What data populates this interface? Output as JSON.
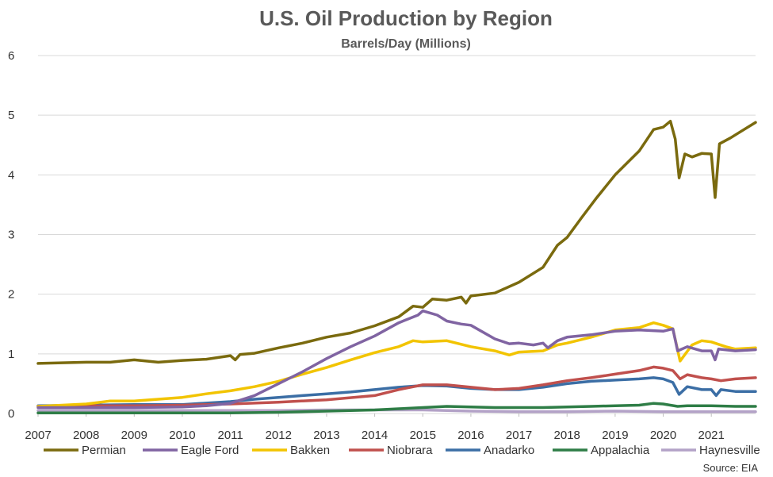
{
  "chart_data": {
    "type": "line",
    "title": "U.S. Oil Production by Region",
    "subtitle": "Barrels/Day (Millions)",
    "source": "Source: EIA",
    "xlabel": "",
    "ylabel": "",
    "xlim": [
      2007,
      2021.92
    ],
    "ylim": [
      0,
      6
    ],
    "x_ticks": [
      "2007",
      "2008",
      "2009",
      "2010",
      "2011",
      "2012",
      "2013",
      "2014",
      "2015",
      "2016",
      "2017",
      "2018",
      "2019",
      "2020",
      "2021"
    ],
    "y_ticks": [
      "0",
      "1",
      "2",
      "3",
      "4",
      "5",
      "6"
    ],
    "grid": true,
    "legend_position": "bottom",
    "series": [
      {
        "name": "Permian",
        "color": "#7A6A0E",
        "points": [
          [
            2007.0,
            0.84
          ],
          [
            2007.5,
            0.85
          ],
          [
            2008.0,
            0.86
          ],
          [
            2008.5,
            0.86
          ],
          [
            2009.0,
            0.9
          ],
          [
            2009.5,
            0.86
          ],
          [
            2010.0,
            0.89
          ],
          [
            2010.5,
            0.91
          ],
          [
            2011.0,
            0.97
          ],
          [
            2011.1,
            0.9
          ],
          [
            2011.2,
            0.99
          ],
          [
            2011.5,
            1.01
          ],
          [
            2012.0,
            1.1
          ],
          [
            2012.5,
            1.18
          ],
          [
            2013.0,
            1.28
          ],
          [
            2013.5,
            1.35
          ],
          [
            2014.0,
            1.47
          ],
          [
            2014.5,
            1.62
          ],
          [
            2014.8,
            1.8
          ],
          [
            2015.0,
            1.78
          ],
          [
            2015.2,
            1.92
          ],
          [
            2015.5,
            1.9
          ],
          [
            2015.8,
            1.95
          ],
          [
            2015.9,
            1.85
          ],
          [
            2016.0,
            1.97
          ],
          [
            2016.5,
            2.02
          ],
          [
            2017.0,
            2.2
          ],
          [
            2017.5,
            2.45
          ],
          [
            2017.8,
            2.82
          ],
          [
            2018.0,
            2.95
          ],
          [
            2018.3,
            3.28
          ],
          [
            2018.6,
            3.6
          ],
          [
            2019.0,
            4.0
          ],
          [
            2019.5,
            4.4
          ],
          [
            2019.8,
            4.76
          ],
          [
            2020.0,
            4.8
          ],
          [
            2020.15,
            4.9
          ],
          [
            2020.25,
            4.6
          ],
          [
            2020.33,
            3.95
          ],
          [
            2020.45,
            4.35
          ],
          [
            2020.6,
            4.3
          ],
          [
            2020.8,
            4.36
          ],
          [
            2021.0,
            4.35
          ],
          [
            2021.08,
            3.62
          ],
          [
            2021.17,
            4.52
          ],
          [
            2021.4,
            4.62
          ],
          [
            2021.6,
            4.72
          ],
          [
            2021.92,
            4.88
          ]
        ]
      },
      {
        "name": "Eagle Ford",
        "color": "#8064A2",
        "points": [
          [
            2007.0,
            0.1
          ],
          [
            2008.0,
            0.1
          ],
          [
            2009.0,
            0.1
          ],
          [
            2010.0,
            0.11
          ],
          [
            2010.5,
            0.13
          ],
          [
            2011.0,
            0.17
          ],
          [
            2011.5,
            0.3
          ],
          [
            2012.0,
            0.5
          ],
          [
            2012.5,
            0.7
          ],
          [
            2013.0,
            0.92
          ],
          [
            2013.5,
            1.12
          ],
          [
            2014.0,
            1.3
          ],
          [
            2014.5,
            1.52
          ],
          [
            2014.9,
            1.65
          ],
          [
            2015.0,
            1.72
          ],
          [
            2015.3,
            1.65
          ],
          [
            2015.5,
            1.55
          ],
          [
            2015.8,
            1.5
          ],
          [
            2016.0,
            1.48
          ],
          [
            2016.5,
            1.25
          ],
          [
            2016.8,
            1.17
          ],
          [
            2017.0,
            1.18
          ],
          [
            2017.3,
            1.15
          ],
          [
            2017.5,
            1.18
          ],
          [
            2017.6,
            1.1
          ],
          [
            2017.8,
            1.22
          ],
          [
            2018.0,
            1.28
          ],
          [
            2018.5,
            1.32
          ],
          [
            2019.0,
            1.38
          ],
          [
            2019.5,
            1.4
          ],
          [
            2020.0,
            1.38
          ],
          [
            2020.2,
            1.42
          ],
          [
            2020.3,
            1.05
          ],
          [
            2020.5,
            1.12
          ],
          [
            2020.8,
            1.05
          ],
          [
            2021.0,
            1.05
          ],
          [
            2021.08,
            0.9
          ],
          [
            2021.15,
            1.08
          ],
          [
            2021.5,
            1.05
          ],
          [
            2021.92,
            1.07
          ]
        ]
      },
      {
        "name": "Bakken",
        "color": "#F2C400",
        "points": [
          [
            2007.0,
            0.12
          ],
          [
            2007.5,
            0.14
          ],
          [
            2008.0,
            0.16
          ],
          [
            2008.5,
            0.21
          ],
          [
            2009.0,
            0.21
          ],
          [
            2009.5,
            0.24
          ],
          [
            2010.0,
            0.27
          ],
          [
            2010.5,
            0.33
          ],
          [
            2011.0,
            0.38
          ],
          [
            2011.5,
            0.45
          ],
          [
            2012.0,
            0.54
          ],
          [
            2012.5,
            0.66
          ],
          [
            2013.0,
            0.77
          ],
          [
            2013.5,
            0.9
          ],
          [
            2014.0,
            1.02
          ],
          [
            2014.5,
            1.12
          ],
          [
            2014.8,
            1.22
          ],
          [
            2015.0,
            1.2
          ],
          [
            2015.5,
            1.22
          ],
          [
            2016.0,
            1.12
          ],
          [
            2016.5,
            1.05
          ],
          [
            2016.8,
            0.98
          ],
          [
            2017.0,
            1.03
          ],
          [
            2017.5,
            1.05
          ],
          [
            2017.8,
            1.15
          ],
          [
            2018.0,
            1.18
          ],
          [
            2018.5,
            1.28
          ],
          [
            2019.0,
            1.4
          ],
          [
            2019.5,
            1.44
          ],
          [
            2019.8,
            1.52
          ],
          [
            2020.0,
            1.48
          ],
          [
            2020.2,
            1.42
          ],
          [
            2020.35,
            0.88
          ],
          [
            2020.6,
            1.15
          ],
          [
            2020.8,
            1.22
          ],
          [
            2021.0,
            1.2
          ],
          [
            2021.3,
            1.12
          ],
          [
            2021.5,
            1.08
          ],
          [
            2021.92,
            1.1
          ]
        ]
      },
      {
        "name": "Niobrara",
        "color": "#C0504D",
        "points": [
          [
            2007.0,
            0.12
          ],
          [
            2008.0,
            0.13
          ],
          [
            2009.0,
            0.13
          ],
          [
            2010.0,
            0.14
          ],
          [
            2011.0,
            0.16
          ],
          [
            2012.0,
            0.19
          ],
          [
            2013.0,
            0.23
          ],
          [
            2014.0,
            0.3
          ],
          [
            2014.5,
            0.4
          ],
          [
            2015.0,
            0.48
          ],
          [
            2015.5,
            0.48
          ],
          [
            2016.0,
            0.44
          ],
          [
            2016.5,
            0.4
          ],
          [
            2017.0,
            0.42
          ],
          [
            2017.5,
            0.48
          ],
          [
            2018.0,
            0.55
          ],
          [
            2018.5,
            0.6
          ],
          [
            2019.0,
            0.66
          ],
          [
            2019.5,
            0.72
          ],
          [
            2019.8,
            0.78
          ],
          [
            2020.0,
            0.76
          ],
          [
            2020.2,
            0.72
          ],
          [
            2020.35,
            0.58
          ],
          [
            2020.5,
            0.65
          ],
          [
            2020.8,
            0.6
          ],
          [
            2021.0,
            0.58
          ],
          [
            2021.2,
            0.55
          ],
          [
            2021.5,
            0.58
          ],
          [
            2021.92,
            0.6
          ]
        ]
      },
      {
        "name": "Anadarko",
        "color": "#3B6EA5",
        "points": [
          [
            2007.0,
            0.13
          ],
          [
            2008.0,
            0.14
          ],
          [
            2009.0,
            0.15
          ],
          [
            2010.0,
            0.15
          ],
          [
            2011.0,
            0.2
          ],
          [
            2011.5,
            0.24
          ],
          [
            2012.0,
            0.27
          ],
          [
            2012.5,
            0.3
          ],
          [
            2013.0,
            0.33
          ],
          [
            2013.5,
            0.36
          ],
          [
            2014.0,
            0.4
          ],
          [
            2014.5,
            0.44
          ],
          [
            2015.0,
            0.47
          ],
          [
            2015.5,
            0.46
          ],
          [
            2016.0,
            0.42
          ],
          [
            2016.5,
            0.4
          ],
          [
            2017.0,
            0.4
          ],
          [
            2017.5,
            0.44
          ],
          [
            2018.0,
            0.5
          ],
          [
            2018.5,
            0.54
          ],
          [
            2019.0,
            0.56
          ],
          [
            2019.5,
            0.58
          ],
          [
            2019.8,
            0.6
          ],
          [
            2020.0,
            0.58
          ],
          [
            2020.2,
            0.52
          ],
          [
            2020.33,
            0.32
          ],
          [
            2020.5,
            0.45
          ],
          [
            2020.8,
            0.4
          ],
          [
            2021.0,
            0.4
          ],
          [
            2021.1,
            0.3
          ],
          [
            2021.2,
            0.4
          ],
          [
            2021.5,
            0.37
          ],
          [
            2021.92,
            0.37
          ]
        ]
      },
      {
        "name": "Appalachia",
        "color": "#2E7D46",
        "points": [
          [
            2007.0,
            0.01
          ],
          [
            2008.0,
            0.01
          ],
          [
            2009.0,
            0.01
          ],
          [
            2010.0,
            0.01
          ],
          [
            2011.0,
            0.01
          ],
          [
            2012.0,
            0.02
          ],
          [
            2013.0,
            0.04
          ],
          [
            2014.0,
            0.06
          ],
          [
            2014.5,
            0.08
          ],
          [
            2015.0,
            0.1
          ],
          [
            2015.5,
            0.12
          ],
          [
            2016.0,
            0.11
          ],
          [
            2016.5,
            0.1
          ],
          [
            2017.0,
            0.1
          ],
          [
            2017.5,
            0.1
          ],
          [
            2018.0,
            0.11
          ],
          [
            2018.5,
            0.12
          ],
          [
            2019.0,
            0.13
          ],
          [
            2019.5,
            0.14
          ],
          [
            2019.8,
            0.17
          ],
          [
            2020.0,
            0.16
          ],
          [
            2020.3,
            0.12
          ],
          [
            2020.5,
            0.13
          ],
          [
            2021.0,
            0.13
          ],
          [
            2021.5,
            0.12
          ],
          [
            2021.92,
            0.12
          ]
        ]
      },
      {
        "name": "Haynesville",
        "color": "#B3A2C7",
        "points": [
          [
            2007.0,
            0.05
          ],
          [
            2008.0,
            0.05
          ],
          [
            2009.0,
            0.05
          ],
          [
            2010.0,
            0.05
          ],
          [
            2011.0,
            0.05
          ],
          [
            2012.0,
            0.05
          ],
          [
            2013.0,
            0.06
          ],
          [
            2014.0,
            0.06
          ],
          [
            2015.0,
            0.06
          ],
          [
            2016.0,
            0.04
          ],
          [
            2017.0,
            0.03
          ],
          [
            2018.0,
            0.03
          ],
          [
            2019.0,
            0.04
          ],
          [
            2020.0,
            0.03
          ],
          [
            2021.0,
            0.03
          ],
          [
            2021.92,
            0.03
          ]
        ]
      }
    ]
  }
}
